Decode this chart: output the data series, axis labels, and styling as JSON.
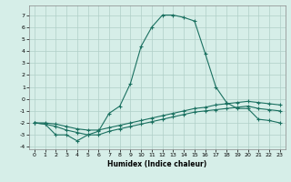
{
  "xlabel": "Humidex (Indice chaleur)",
  "background_color": "#d6eee8",
  "line_color": "#1a7060",
  "grid_color": "#b0cfc8",
  "xlim": [
    -0.5,
    23.5
  ],
  "ylim": [
    -4.2,
    7.8
  ],
  "xticks": [
    0,
    1,
    2,
    3,
    4,
    5,
    6,
    7,
    8,
    9,
    10,
    11,
    12,
    13,
    14,
    15,
    16,
    17,
    18,
    19,
    20,
    21,
    22,
    23
  ],
  "yticks": [
    -4,
    -3,
    -2,
    -1,
    0,
    1,
    2,
    3,
    4,
    5,
    6,
    7
  ],
  "series": [
    {
      "x": [
        0,
        1,
        2,
        3,
        4,
        5,
        6,
        7,
        8,
        9,
        10,
        11,
        12,
        13,
        14,
        15,
        16,
        17,
        18,
        19,
        20,
        21,
        22,
        23
      ],
      "y": [
        -2.0,
        -2.1,
        -3.0,
        -3.0,
        -3.5,
        -3.0,
        -2.7,
        -1.2,
        -0.6,
        1.3,
        4.4,
        6.0,
        7.0,
        7.0,
        6.8,
        6.5,
        3.8,
        1.0,
        -0.3,
        -0.8,
        -0.8,
        -1.7,
        -1.8,
        -2.0
      ]
    },
    {
      "x": [
        0,
        1,
        2,
        3,
        4,
        5,
        6,
        7,
        8,
        9,
        10,
        11,
        12,
        13,
        14,
        15,
        16,
        17,
        18,
        19,
        20,
        21,
        22,
        23
      ],
      "y": [
        -2.0,
        -2.0,
        -2.1,
        -2.3,
        -2.5,
        -2.6,
        -2.6,
        -2.4,
        -2.2,
        -2.0,
        -1.8,
        -1.6,
        -1.4,
        -1.2,
        -1.0,
        -0.8,
        -0.7,
        -0.5,
        -0.4,
        -0.3,
        -0.2,
        -0.3,
        -0.4,
        -0.5
      ]
    },
    {
      "x": [
        0,
        1,
        2,
        3,
        4,
        5,
        6,
        7,
        8,
        9,
        10,
        11,
        12,
        13,
        14,
        15,
        16,
        17,
        18,
        19,
        20,
        21,
        22,
        23
      ],
      "y": [
        -2.0,
        -2.1,
        -2.3,
        -2.6,
        -2.8,
        -3.0,
        -3.0,
        -2.7,
        -2.5,
        -2.3,
        -2.1,
        -1.9,
        -1.7,
        -1.5,
        -1.3,
        -1.1,
        -1.0,
        -0.9,
        -0.8,
        -0.7,
        -0.6,
        -0.8,
        -0.9,
        -1.0
      ]
    }
  ]
}
